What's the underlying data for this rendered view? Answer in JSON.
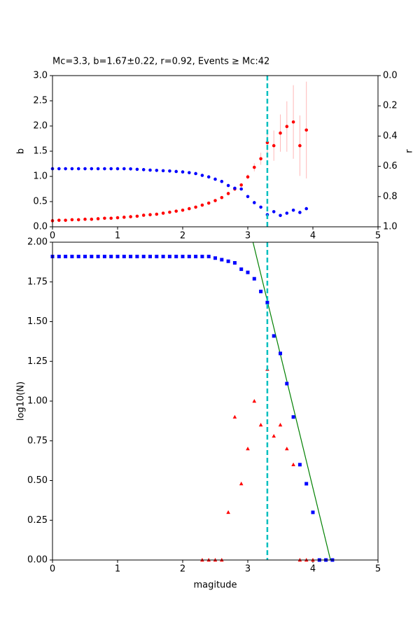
{
  "chart_data": [
    {
      "type": "scatter",
      "title": "Mc=3.3, b=1.67±0.22, r=0.92, Events ≥ Mc:42",
      "ylabel": "b",
      "y2label": "r",
      "xlim": [
        0,
        5
      ],
      "xticks": [
        0,
        1,
        2,
        3,
        4,
        5
      ],
      "ylim": [
        0,
        3
      ],
      "yticks": [
        {
          "value": 0,
          "label": "0.0"
        },
        {
          "value": 0.5,
          "label": "0.5"
        },
        {
          "value": 1,
          "label": "1.0"
        },
        {
          "value": 1.5,
          "label": "1.5"
        },
        {
          "value": 2,
          "label": "2.0"
        },
        {
          "value": 2.5,
          "label": "2.5"
        },
        {
          "value": 3,
          "label": "3.0"
        }
      ],
      "y2lim": [
        1,
        0
      ],
      "y2ticks": [
        {
          "value": 0,
          "label": "0.0"
        },
        {
          "value": 0.2,
          "label": "0.2"
        },
        {
          "value": 0.4,
          "label": "0.4"
        },
        {
          "value": 0.6,
          "label": "0.6"
        },
        {
          "value": 0.8,
          "label": "0.8"
        },
        {
          "value": 1,
          "label": "1.0"
        }
      ],
      "vline": 3.3,
      "vline_color": "#00bfbf",
      "series": [
        {
          "color": "red",
          "marker": "o",
          "error_color": "#ffb8b8",
          "x": [
            0,
            0.1,
            0.2,
            0.3,
            0.4,
            0.5,
            0.6,
            0.7,
            0.8,
            0.9,
            1,
            1.1,
            1.2,
            1.3,
            1.4,
            1.5,
            1.6,
            1.7,
            1.8,
            1.9,
            2,
            2.1,
            2.2,
            2.3,
            2.4,
            2.5,
            2.6,
            2.7,
            2.8,
            2.9,
            3,
            3.1,
            3.2,
            3.3,
            3.4,
            3.5,
            3.6,
            3.7,
            3.8,
            3.9
          ],
          "values": [
            0.12,
            0.13,
            0.13,
            0.14,
            0.14,
            0.15,
            0.15,
            0.16,
            0.17,
            0.17,
            0.18,
            0.19,
            0.2,
            0.21,
            0.23,
            0.24,
            0.25,
            0.27,
            0.29,
            0.31,
            0.33,
            0.36,
            0.39,
            0.43,
            0.47,
            0.52,
            0.58,
            0.66,
            0.75,
            0.83,
            0.99,
            1.18,
            1.35,
            1.67,
            1.61,
            1.86,
            1.99,
            2.08,
            1.61,
            1.92
          ],
          "errors": [
            0.01,
            0.01,
            0.01,
            0.01,
            0.01,
            0.01,
            0.01,
            0.01,
            0.01,
            0.01,
            0.01,
            0.01,
            0.01,
            0.01,
            0.01,
            0.01,
            0.01,
            0.01,
            0.01,
            0.01,
            0.01,
            0.01,
            0.02,
            0.02,
            0.02,
            0.02,
            0.03,
            0.03,
            0.04,
            0.04,
            0.05,
            0.08,
            0.12,
            0.22,
            0.3,
            0.37,
            0.5,
            0.73,
            0.6,
            0.96
          ]
        },
        {
          "color": "blue",
          "marker": "o",
          "axis": "y2",
          "x": [
            0,
            0.1,
            0.2,
            0.3,
            0.4,
            0.5,
            0.6,
            0.7,
            0.8,
            0.9,
            1,
            1.1,
            1.2,
            1.3,
            1.4,
            1.5,
            1.6,
            1.7,
            1.8,
            1.9,
            2,
            2.1,
            2.2,
            2.3,
            2.4,
            2.5,
            2.6,
            2.7,
            2.8,
            2.9,
            3,
            3.1,
            3.2,
            3.3,
            3.4,
            3.5,
            3.6,
            3.7,
            3.8,
            3.9
          ],
          "values": [
            0.616,
            0.616,
            0.616,
            0.616,
            0.616,
            0.616,
            0.616,
            0.616,
            0.616,
            0.616,
            0.616,
            0.616,
            0.617,
            0.62,
            0.622,
            0.625,
            0.627,
            0.629,
            0.631,
            0.634,
            0.637,
            0.642,
            0.648,
            0.66,
            0.67,
            0.685,
            0.7,
            0.727,
            0.745,
            0.75,
            0.8,
            0.84,
            0.87,
            0.92,
            0.9,
            0.925,
            0.91,
            0.89,
            0.905,
            0.88
          ]
        }
      ]
    },
    {
      "type": "scatter",
      "xlabel": "magitude",
      "ylabel": "log10(N)",
      "xlim": [
        0,
        5
      ],
      "xticks": [
        0,
        1,
        2,
        3,
        4,
        5
      ],
      "ylim": [
        0,
        2
      ],
      "yticks": [
        {
          "value": 0,
          "label": "0.00"
        },
        {
          "value": 0.25,
          "label": "0.25"
        },
        {
          "value": 0.5,
          "label": "0.50"
        },
        {
          "value": 0.75,
          "label": "0.75"
        },
        {
          "value": 1,
          "label": "1.00"
        },
        {
          "value": 1.25,
          "label": "1.25"
        },
        {
          "value": 1.5,
          "label": "1.50"
        },
        {
          "value": 1.75,
          "label": "1.75"
        },
        {
          "value": 2,
          "label": "2.00"
        }
      ],
      "vline": 3.3,
      "vline_color": "#00bfbf",
      "series": [
        {
          "color": "green",
          "marker": "line",
          "x": [
            3.08,
            4.27
          ],
          "values": [
            2,
            0
          ]
        },
        {
          "color": "blue",
          "marker": "s",
          "x": [
            0,
            0.1,
            0.2,
            0.3,
            0.4,
            0.5,
            0.6,
            0.7,
            0.8,
            0.9,
            1,
            1.1,
            1.2,
            1.3,
            1.4,
            1.5,
            1.6,
            1.7,
            1.8,
            1.9,
            2,
            2.1,
            2.2,
            2.3,
            2.4,
            2.5,
            2.6,
            2.7,
            2.8,
            2.9,
            3,
            3.1,
            3.2,
            3.3,
            3.4,
            3.5,
            3.6,
            3.7,
            3.8,
            3.9,
            4,
            4.1,
            4.2,
            4.3
          ],
          "values": [
            1.91,
            1.91,
            1.91,
            1.91,
            1.91,
            1.91,
            1.91,
            1.91,
            1.91,
            1.91,
            1.91,
            1.91,
            1.91,
            1.91,
            1.91,
            1.91,
            1.91,
            1.91,
            1.91,
            1.91,
            1.91,
            1.91,
            1.91,
            1.91,
            1.91,
            1.9,
            1.89,
            1.88,
            1.87,
            1.83,
            1.81,
            1.77,
            1.69,
            1.62,
            1.41,
            1.3,
            1.11,
            0.9,
            0.6,
            0.48,
            0.3,
            0,
            0,
            0
          ]
        },
        {
          "color": "red",
          "marker": "^",
          "x": [
            2.3,
            2.4,
            2.5,
            2.6,
            2.7,
            2.8,
            2.9,
            3,
            3.1,
            3.2,
            3.3,
            3.4,
            3.5,
            3.6,
            3.7,
            3.8,
            3.9,
            4
          ],
          "values": [
            0,
            0,
            0,
            0,
            0.3,
            0.9,
            0.48,
            0.7,
            1,
            0.85,
            1.2,
            0.78,
            0.85,
            0.7,
            0.6,
            0,
            0,
            0
          ]
        }
      ]
    }
  ]
}
